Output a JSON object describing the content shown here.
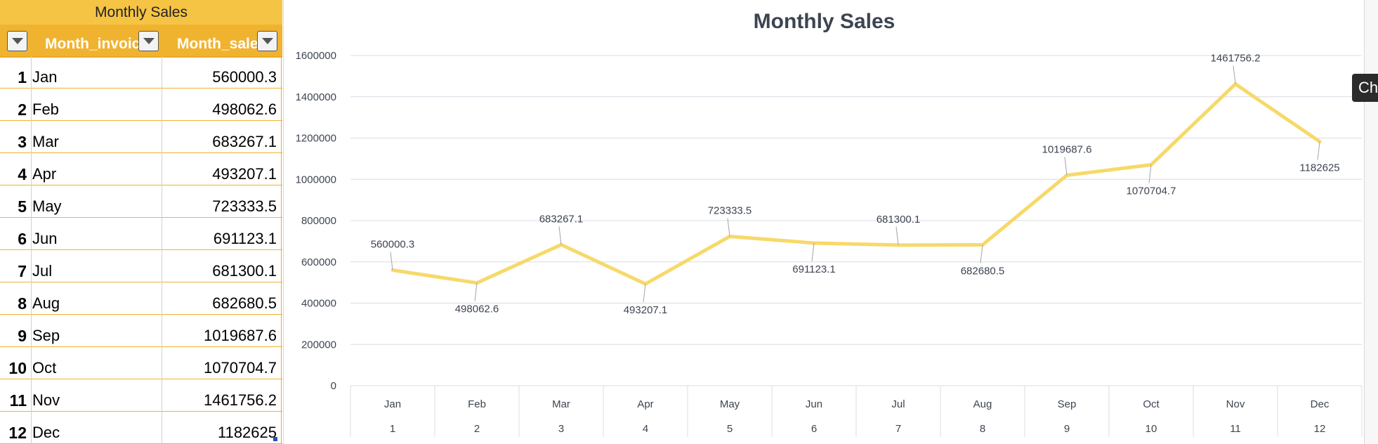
{
  "table": {
    "title": "Monthly Sales",
    "headers": [
      "",
      "Month_invoic",
      "Month_sale"
    ],
    "rows": [
      {
        "idx": "1",
        "month": "Jan",
        "sales": "560000.3"
      },
      {
        "idx": "2",
        "month": "Feb",
        "sales": "498062.6"
      },
      {
        "idx": "3",
        "month": "Mar",
        "sales": "683267.1"
      },
      {
        "idx": "4",
        "month": "Apr",
        "sales": "493207.1"
      },
      {
        "idx": "5",
        "month": "May",
        "sales": "723333.5"
      },
      {
        "idx": "6",
        "month": "Jun",
        "sales": "691123.1"
      },
      {
        "idx": "7",
        "month": "Jul",
        "sales": "681300.1"
      },
      {
        "idx": "8",
        "month": "Aug",
        "sales": "682680.5"
      },
      {
        "idx": "9",
        "month": "Sep",
        "sales": "1019687.6"
      },
      {
        "idx": "10",
        "month": "Oct",
        "sales": "1070704.7"
      },
      {
        "idx": "11",
        "month": "Nov",
        "sales": "1461756.2"
      },
      {
        "idx": "12",
        "month": "Dec",
        "sales": "1182625"
      }
    ]
  },
  "side_tab_label": "Ch",
  "colors": {
    "header_bg": "#f0b330",
    "title_bg": "#f6c445",
    "line": "#f7d96a",
    "text": "#3d4451"
  },
  "chart_data": {
    "type": "line",
    "title": "Monthly Sales",
    "categories": [
      "Jan",
      "Feb",
      "Mar",
      "Apr",
      "May",
      "Jun",
      "Jul",
      "Aug",
      "Sep",
      "Oct",
      "Nov",
      "Dec"
    ],
    "categories_level2": [
      "1",
      "2",
      "3",
      "4",
      "5",
      "6",
      "7",
      "8",
      "9",
      "10",
      "11",
      "12"
    ],
    "series": [
      {
        "values": [
          560000.3,
          498062.6,
          683267.1,
          493207.1,
          723333.5,
          691123.1,
          681300.1,
          682680.5,
          1019687.6,
          1070704.7,
          1461756.2,
          1182625
        ]
      }
    ],
    "data_labels": [
      "560000.3",
      "498062.6",
      "683267.1",
      "493207.1",
      "723333.5",
      "691123.1",
      "681300.1",
      "682680.5",
      "1019687.6",
      "1070704.7",
      "1461756.2",
      "1182625"
    ],
    "label_positions": [
      "above",
      "below",
      "above",
      "below",
      "above",
      "below",
      "above",
      "below",
      "above",
      "below",
      "above",
      "below"
    ],
    "ylim": [
      0,
      1600000
    ],
    "yticks": [
      0,
      200000,
      400000,
      600000,
      800000,
      1000000,
      1200000,
      1400000,
      1600000
    ],
    "ytick_labels": [
      "0",
      "200000",
      "400000",
      "600000",
      "800000",
      "1000000",
      "1200000",
      "1400000",
      "1600000"
    ],
    "grid": true,
    "legend": "none"
  }
}
